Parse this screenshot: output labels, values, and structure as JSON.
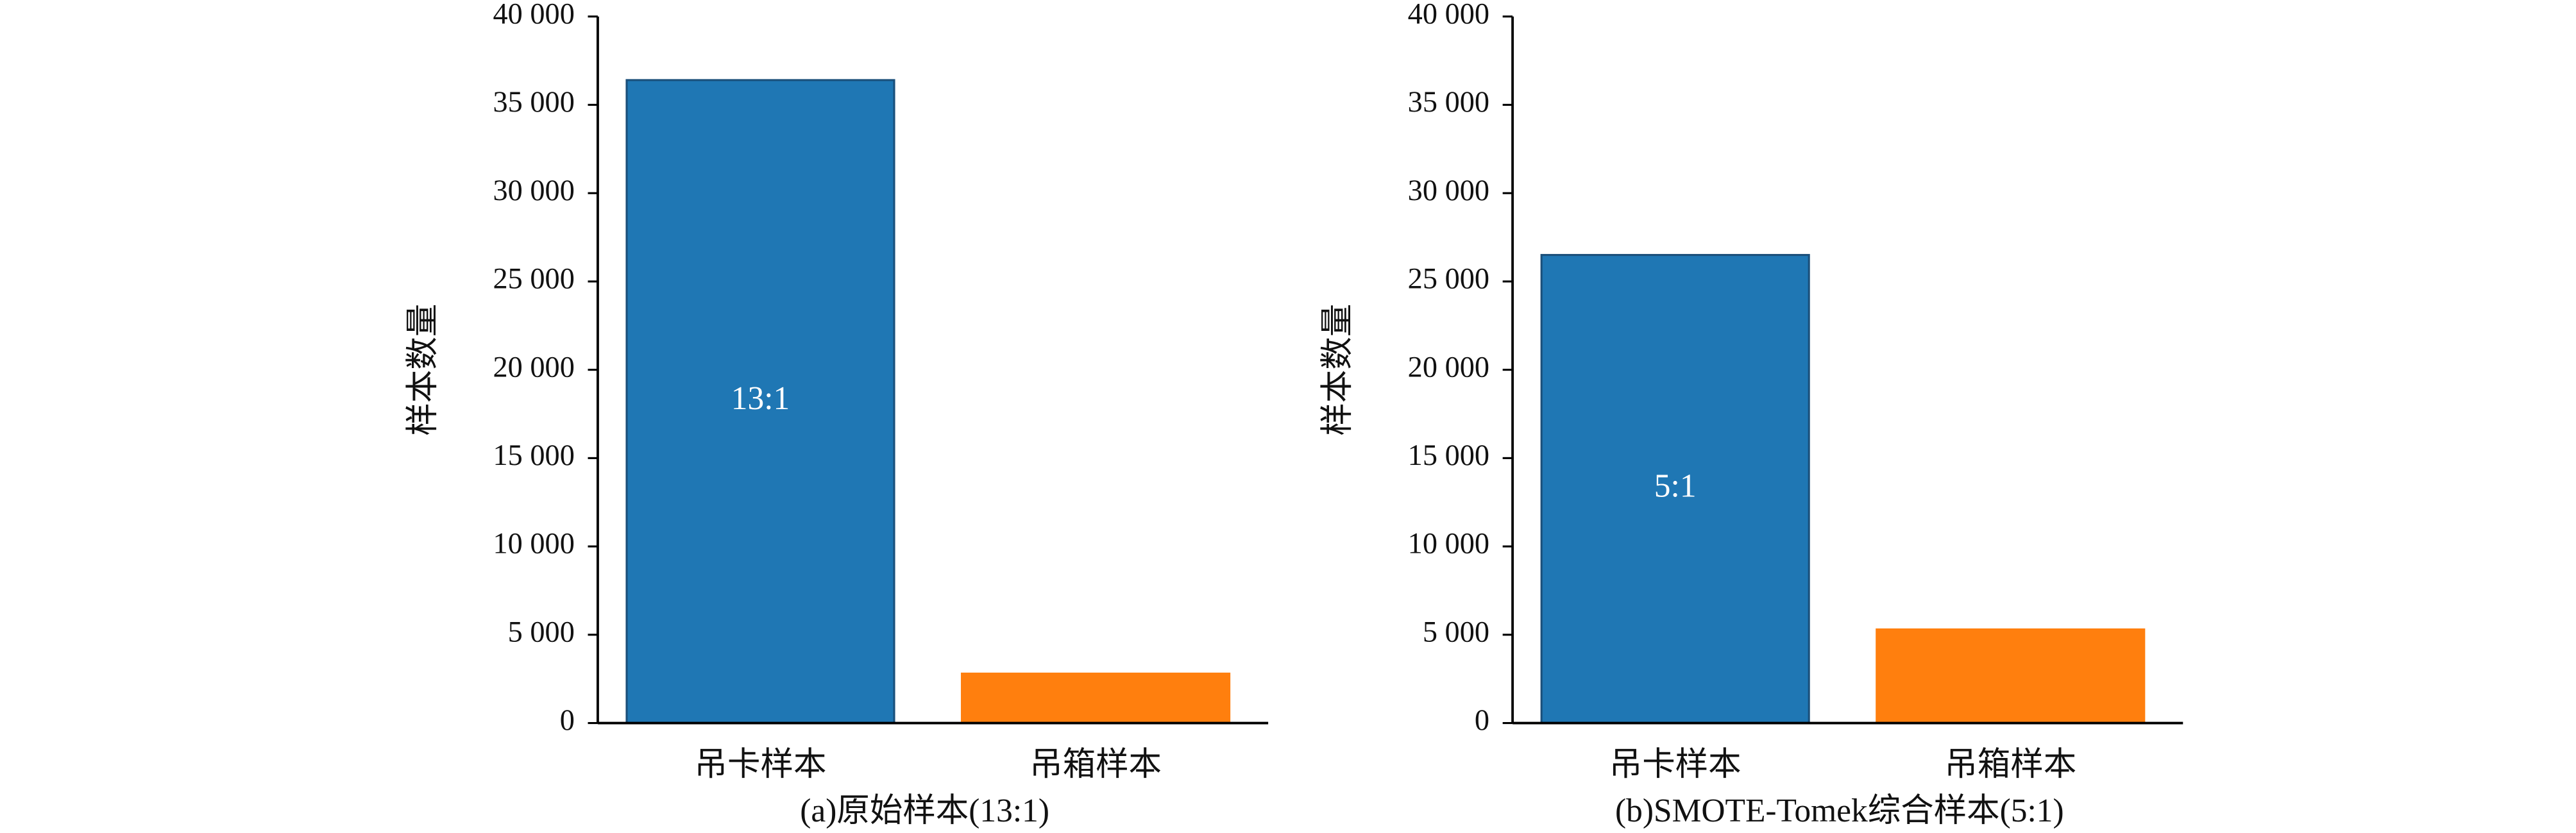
{
  "chart_data": [
    {
      "type": "bar",
      "caption": "(a)原始样本(13:1)",
      "ylabel": "样本数量",
      "categories": [
        "吊卡样本",
        "吊箱样本"
      ],
      "values": [
        36400,
        2800
      ],
      "colors": [
        "#1f77b4",
        "#ff7f0e"
      ],
      "annotation": "13:1",
      "ylim": [
        0,
        40000
      ],
      "yticks": [
        0,
        {
          "value": 5000,
          "label": "5 000"
        },
        {
          "value": 10000,
          "label": "10 000"
        },
        {
          "value": 15000,
          "label": "15 000"
        },
        {
          "value": 20000,
          "label": "20 000"
        },
        {
          "value": 25000,
          "label": "25 000"
        },
        {
          "value": 30000,
          "label": "30 000"
        },
        {
          "value": 35000,
          "label": "35 000"
        },
        {
          "value": 40000,
          "label": "40 000"
        }
      ]
    },
    {
      "type": "bar",
      "caption": "(b)SMOTE-Tomek综合样本(5:1)",
      "ylabel": "样本数量",
      "categories": [
        "吊卡样本",
        "吊箱样本"
      ],
      "values": [
        26500,
        5300
      ],
      "colors": [
        "#1f77b4",
        "#ff7f0e"
      ],
      "annotation": "5:1",
      "ylim": [
        0,
        40000
      ],
      "yticks": [
        0,
        {
          "value": 5000,
          "label": "5 000"
        },
        {
          "value": 10000,
          "label": "10 000"
        },
        {
          "value": 15000,
          "label": "15 000"
        },
        {
          "value": 20000,
          "label": "20 000"
        },
        {
          "value": 25000,
          "label": "25 000"
        },
        {
          "value": 30000,
          "label": "30 000"
        },
        {
          "value": 35000,
          "label": "35 000"
        },
        {
          "value": 40000,
          "label": "40 000"
        }
      ]
    }
  ]
}
